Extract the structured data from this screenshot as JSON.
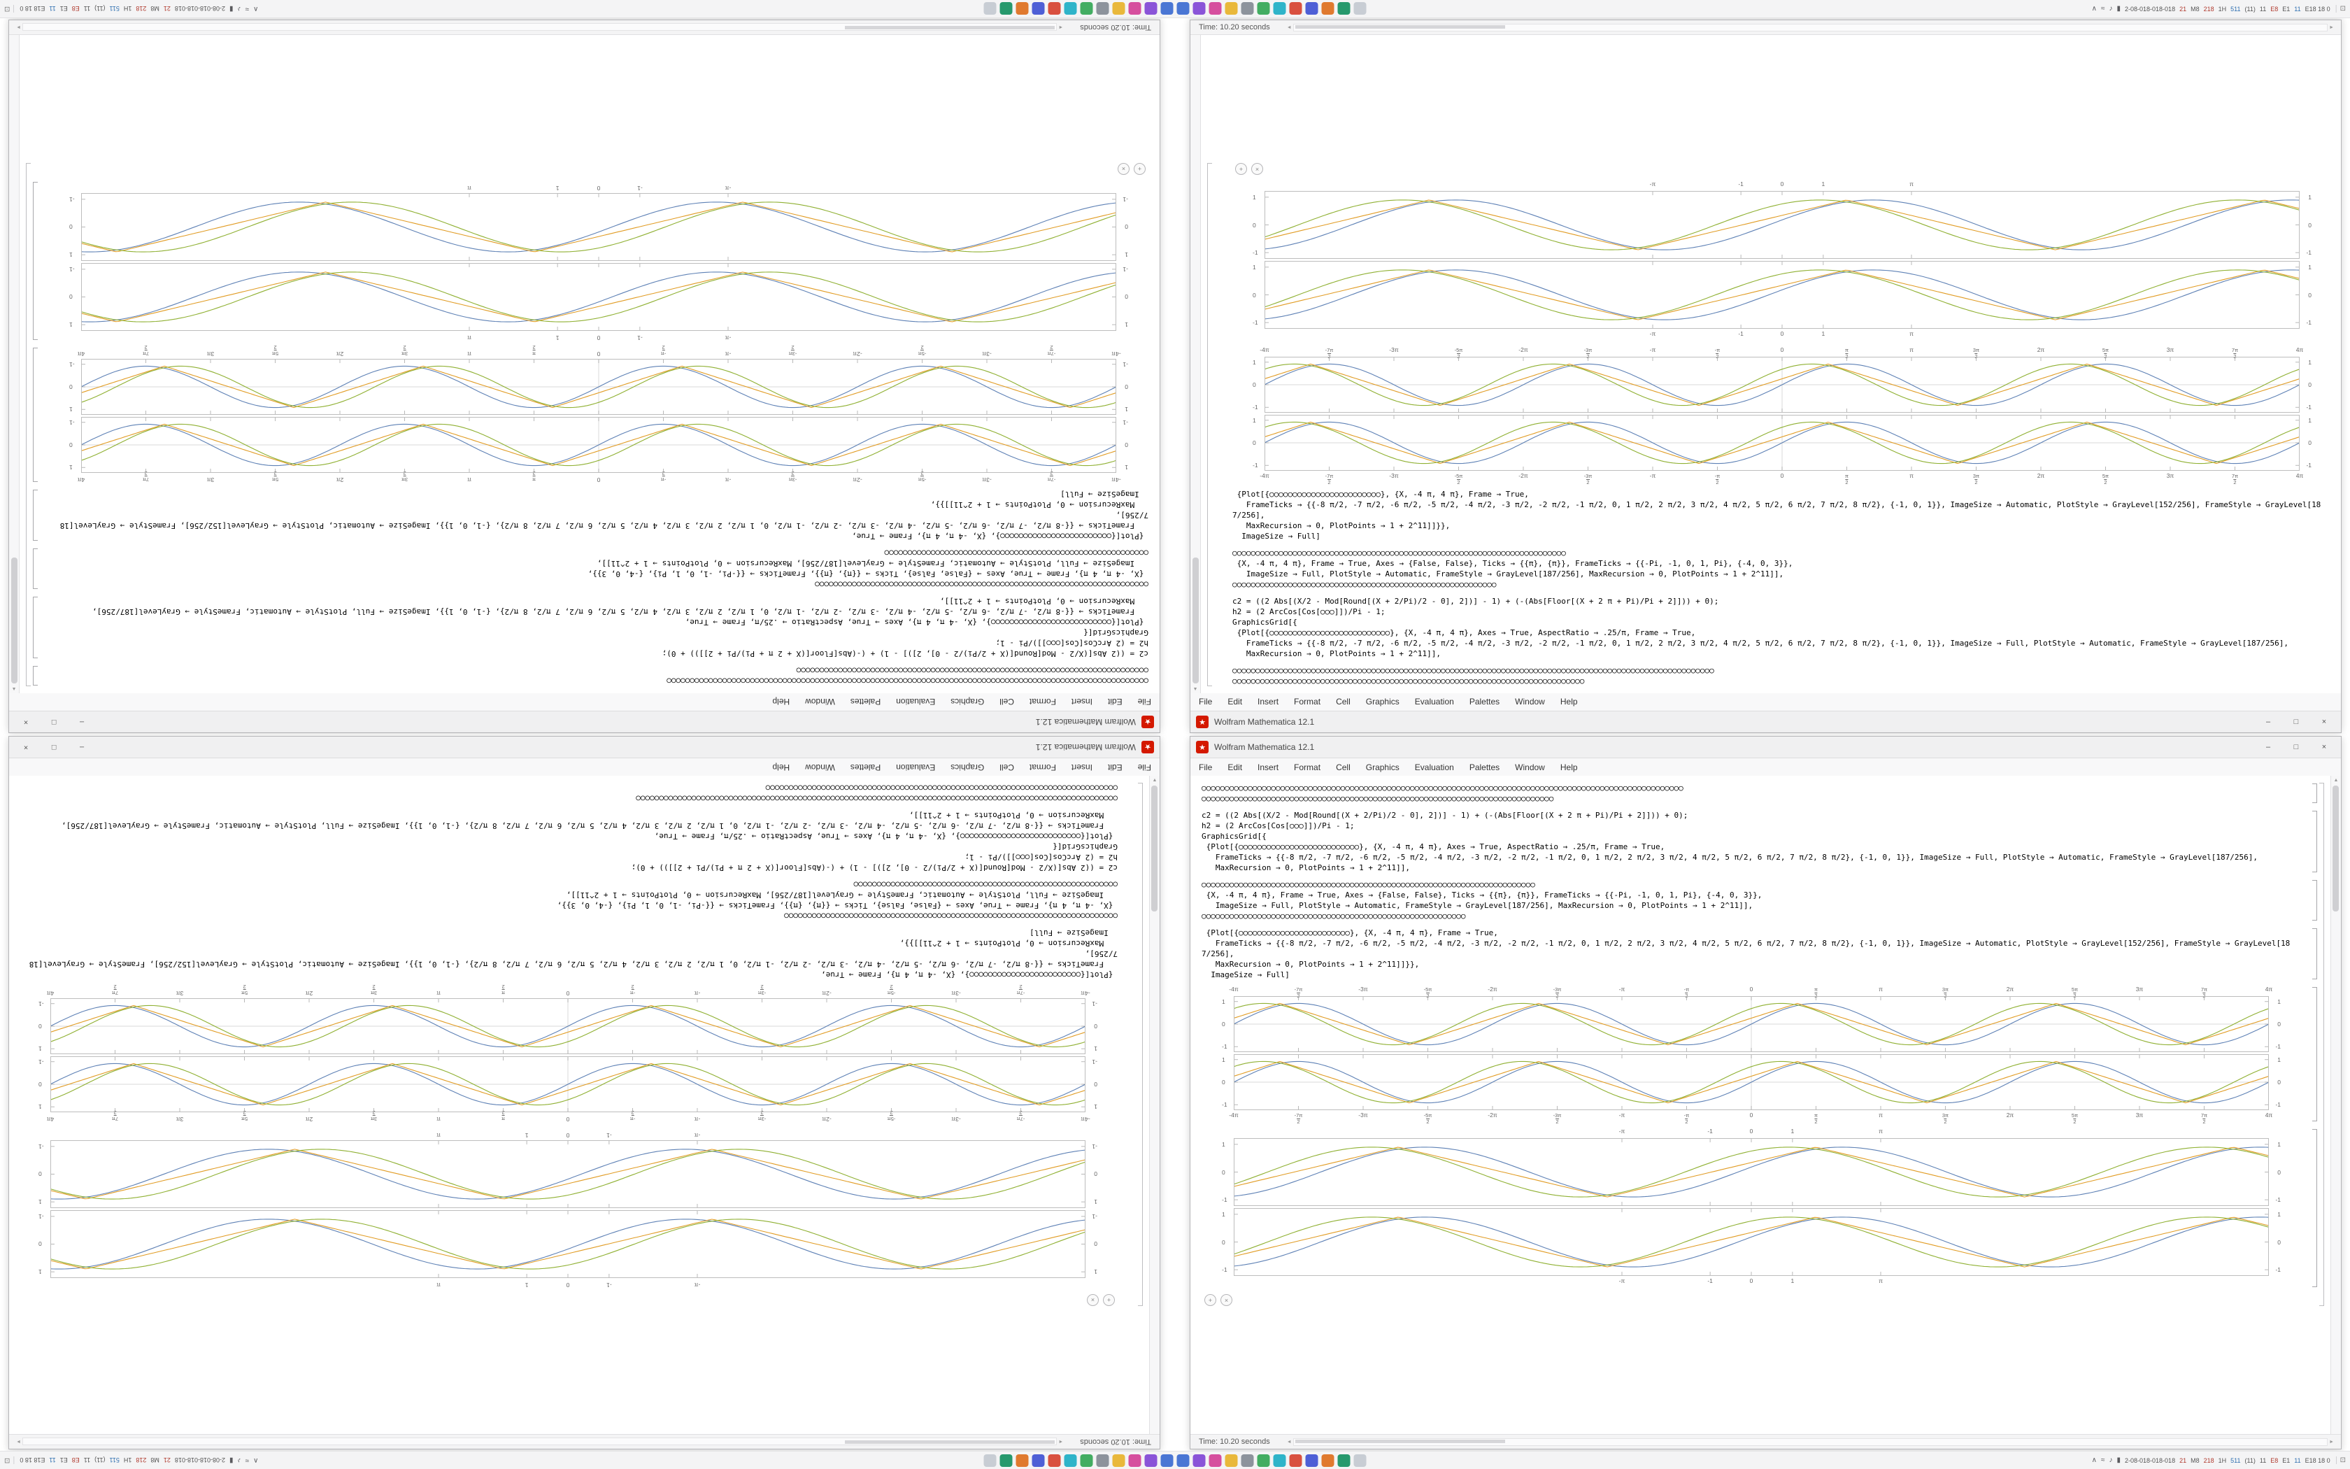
{
  "desktop": {
    "taskbar": {
      "pinned_icons": [
        {
          "name": "app-icon-1",
          "color": "#4a76d4"
        },
        {
          "name": "app-icon-2",
          "color": "#8a54d8"
        },
        {
          "name": "app-icon-3",
          "color": "#d64f9e"
        },
        {
          "name": "app-icon-4",
          "color": "#e9b83b"
        },
        {
          "name": "app-icon-5",
          "color": "#8d939c"
        },
        {
          "name": "app-icon-6",
          "color": "#43ad62"
        },
        {
          "name": "app-icon-7",
          "color": "#2fb4c9"
        },
        {
          "name": "app-icon-8",
          "color": "#d9503f"
        },
        {
          "name": "app-icon-9",
          "color": "#4e5fd6"
        },
        {
          "name": "app-icon-10",
          "color": "#e07a2f"
        },
        {
          "name": "app-icon-11",
          "color": "#27996d"
        },
        {
          "name": "app-icon-12",
          "color": "#c8cdd4"
        }
      ],
      "tray_icons": [
        {
          "name": "chevron-up-icon",
          "glyph": "∧"
        },
        {
          "name": "network-icon",
          "glyph": "≈"
        },
        {
          "name": "volume-icon",
          "glyph": "♪"
        },
        {
          "name": "battery-icon",
          "glyph": "▮"
        }
      ],
      "tray_tokens": [
        {
          "text": "2-08-018-018-018",
          "color": "#555"
        },
        {
          "text": "21",
          "color": "#b03a2e"
        },
        {
          "text": "M8",
          "color": "#555"
        },
        {
          "text": "218",
          "color": "#b03a2e"
        },
        {
          "text": "1H",
          "color": "#555"
        },
        {
          "text": "511",
          "color": "#2e6fb0"
        },
        {
          "text": "(11)",
          "color": "#555"
        },
        {
          "text": "11",
          "color": "#555"
        },
        {
          "text": "E8",
          "color": "#b03a2e"
        },
        {
          "text": "E1",
          "color": "#555"
        },
        {
          "text": "11",
          "color": "#2e6fb0"
        },
        {
          "text": "E18 18 0",
          "color": "#555"
        }
      ]
    },
    "window": {
      "title": "Wolfram Mathematica 12.1",
      "menu": [
        "File",
        "Edit",
        "Insert",
        "Format",
        "Cell",
        "Graphics",
        "Evaluation",
        "Palettes",
        "Window",
        "Help"
      ],
      "status": "Time: 10.20 seconds",
      "code_blocks": [
        {
          "lines": [
            "○○○○○○○○○○○○○○○○○○○○○○○○○○○○○○○○○○○○○○○○○○○○○○○○○○○○○○○○○○○○○○○○○○○○○○○○○○○○○○○○○○○○○○○○○○○○○○○○○○○○○○○○",
            "○○○○○○○○○○○○○○○○○○○○○○○○○○○○○○○○○○○○○○○○○○○○○○○○○○○○○○○○○○○○○○○○○○○○○○○○○○○○"
          ]
        },
        {
          "lines": [
            "c2 = ((2 Abs[(X/2 - Mod[Round[(X + 2/Pi)/2 - 0], 2])] - 1) + (-(Abs[Floor[(X + 2 π + Pi)/Pi + 2]])) + 0);",
            "h2 = (2 ArcCos[Cos[○○○]])/Pi - 1;",
            "GraphicsGrid[{",
            " {Plot[{○○○○○○○○○○○○○○○○○○○○○○○○○○}, {X, -4 π, 4 π}, Axes → True, AspectRatio → .25/π, Frame → True,",
            "   FrameTicks → {{-8 π/2, -7 π/2, -6 π/2, -5 π/2, -4 π/2, -3 π/2, -2 π/2, -1 π/2, 0, 1 π/2, 2 π/2, 3 π/2, 4 π/2, 5 π/2, 6 π/2, 7 π/2, 8 π/2}, {-1, 0, 1}}, ImageSize → Full, PlotStyle → Automatic, FrameStyle → GrayLevel[187/256],",
            "   MaxRecursion → 0, PlotPoints → 1 + 2^11]],"
          ]
        },
        {
          "lines": [
            "○○○○○○○○○○○○○○○○○○○○○○○○○○○○○○○○○○○○○○○○○○○○○○○○○○○○○○○○○○○○○○○○○○○○○○○○",
            " {X, -4 π, 4 π}, Frame → True, Axes → {False, False}, Ticks → {{π}, {π}}, FrameTicks → {{-Pi, -1, 0, 1, Pi}, {-4, 0, 3}},",
            "   ImageSize → Full, PlotStyle → Automatic, FrameStyle → GrayLevel[187/256], MaxRecursion → 0, PlotPoints → 1 + 2^11]],",
            "○○○○○○○○○○○○○○○○○○○○○○○○○○○○○○○○○○○○○○○○○○○○○○○○○○○○○○○○○"
          ]
        },
        {
          "lines": [
            " {Plot[{○○○○○○○○○○○○○○○○○○○○○○○○}, {X, -4 π, 4 π}, Frame → True,",
            "   FrameTicks → {{-8 π/2, -7 π/2, -6 π/2, -5 π/2, -4 π/2, -3 π/2, -2 π/2, -1 π/2, 0, 1 π/2, 2 π/2, 3 π/2, 4 π/2, 5 π/2, 6 π/2, 7 π/2, 8 π/2}, {-1, 0, 1}}, ImageSize → Automatic, PlotStyle → GrayLevel[152/256], FrameStyle → GrayLevel[187/256],",
            "   MaxRecursion → 0, PlotPoints → 1 + 2^11]]}},",
            "  ImageSize → Full]"
          ]
        }
      ]
    }
  },
  "ui": {
    "min": "–",
    "max": "□",
    "close": "×",
    "app_icon_glyph": "★",
    "show_desktop": "⊡",
    "scroll_up": "▲",
    "scroll_down": "▼",
    "scroll_left": "◄",
    "scroll_right": "►",
    "suggestion_buttons": [
      "+",
      "×"
    ]
  },
  "chart_data": [
    {
      "type": "line",
      "title": "",
      "xlabel": "",
      "ylabel": "",
      "frames": 2,
      "x_range": [
        -12.566,
        12.566
      ],
      "ylim": [
        -1.15,
        1.15
      ],
      "amp": 0.92,
      "axes": true,
      "x_ticks": {
        "values": [
          -12.566,
          -10.996,
          -9.425,
          -7.854,
          -6.283,
          -4.712,
          -3.142,
          -1.571,
          0,
          1.571,
          3.142,
          4.712,
          6.283,
          7.854,
          9.425,
          10.996,
          12.566
        ],
        "labels": [
          "-4π",
          "-7π/2",
          "-3π",
          "-5π/2",
          "-2π",
          "-3π/2",
          "-π",
          "-π/2",
          "0",
          "π/2",
          "π",
          "3π/2",
          "2π",
          "5π/2",
          "3π",
          "7π/2",
          "4π"
        ]
      },
      "y_ticks": {
        "values": [
          -1,
          0,
          1
        ],
        "labels": [
          "-1",
          "0",
          "1"
        ]
      },
      "series": [
        {
          "name": "series-1",
          "fn": "sin",
          "freq": 1,
          "phase": 0,
          "color": "#5e81b5"
        },
        {
          "name": "series-2",
          "fn": "tri",
          "freq": 1,
          "phase": 0.45,
          "color": "#e19c24"
        },
        {
          "name": "series-3",
          "fn": "sin",
          "freq": 1,
          "phase": 0.85,
          "color": "#8fb032"
        }
      ]
    },
    {
      "type": "line",
      "title": "",
      "xlabel": "",
      "ylabel": "",
      "frames": 2,
      "x_range": [
        -12.566,
        12.566
      ],
      "ylim": [
        -1.15,
        1.15
      ],
      "amp": 0.9,
      "axes": false,
      "x_ticks": {
        "values": [
          -3.1416,
          -1,
          0,
          1,
          3.1416
        ],
        "labels": [
          "-π",
          "-1",
          "0",
          "1",
          "π"
        ]
      },
      "y_ticks": {
        "values": [
          -1,
          0,
          1
        ],
        "labels": [
          "-1",
          "0",
          "1"
        ]
      },
      "series": [
        {
          "name": "series-1",
          "fn": "sin",
          "freq": 0.62,
          "phase": 0.2,
          "color": "#5e81b5"
        },
        {
          "name": "series-2",
          "fn": "tri",
          "freq": 0.62,
          "phase": 0.6,
          "color": "#e19c24"
        },
        {
          "name": "series-3",
          "fn": "sin",
          "freq": 0.62,
          "phase": 1.0,
          "color": "#8fb032"
        }
      ]
    }
  ]
}
